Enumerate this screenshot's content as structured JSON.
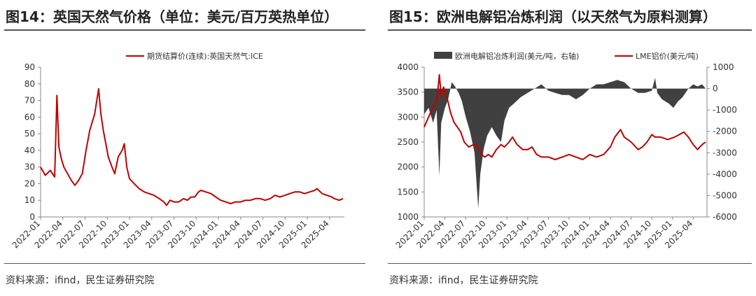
{
  "left": {
    "title": "图14：英国天然气价格（单位：美元/百万英热单位）",
    "source": "资料来源：ifind，民生证券研究院",
    "chart_data": {
      "type": "line",
      "title": "",
      "legend_position": "top-center",
      "ylim": [
        0,
        90
      ],
      "y_ticks": [
        "0",
        "10",
        "20",
        "30",
        "40",
        "50",
        "60",
        "70",
        "80",
        "90"
      ],
      "x_ticks": [
        "2022-01",
        "2022-04",
        "2022-07",
        "2022-10",
        "2023-01",
        "2023-04",
        "2023-07",
        "2023-10",
        "2024-01",
        "2024-04",
        "2024-07",
        "2024-10",
        "2025-01",
        "2025-04"
      ],
      "colors": {
        "line": "#c00000"
      },
      "series": [
        {
          "name": "期货结算价(连续):英国天然气:ICE",
          "points": [
            [
              "2022-01",
              30
            ],
            [
              "2022-01-20",
              25
            ],
            [
              "2022-02-10",
              28
            ],
            [
              "2022-02-28",
              24
            ],
            [
              "2022-03-07",
              73
            ],
            [
              "2022-03-15",
              42
            ],
            [
              "2022-03-25",
              35
            ],
            [
              "2022-04-05",
              30
            ],
            [
              "2022-04-20",
              26
            ],
            [
              "2022-05-05",
              22
            ],
            [
              "2022-05-20",
              19
            ],
            [
              "2022-06-05",
              22
            ],
            [
              "2022-06-20",
              26
            ],
            [
              "2022-07-05",
              40
            ],
            [
              "2022-07-20",
              52
            ],
            [
              "2022-08-10",
              62
            ],
            [
              "2022-08-26",
              77
            ],
            [
              "2022-09-05",
              62
            ],
            [
              "2022-09-15",
              52
            ],
            [
              "2022-09-25",
              44
            ],
            [
              "2022-10-05",
              36
            ],
            [
              "2022-10-20",
              30
            ],
            [
              "2022-11-01",
              26
            ],
            [
              "2022-11-15",
              36
            ],
            [
              "2022-12-01",
              40
            ],
            [
              "2022-12-10",
              44
            ],
            [
              "2022-12-20",
              30
            ],
            [
              "2023-01-01",
              23
            ],
            [
              "2023-01-20",
              20
            ],
            [
              "2023-02-10",
              17
            ],
            [
              "2023-03-01",
              15
            ],
            [
              "2023-03-20",
              14
            ],
            [
              "2023-04-10",
              13
            ],
            [
              "2023-05-01",
              11
            ],
            [
              "2023-05-20",
              9
            ],
            [
              "2023-06-01",
              7
            ],
            [
              "2023-06-15",
              10
            ],
            [
              "2023-07-01",
              9
            ],
            [
              "2023-07-20",
              9
            ],
            [
              "2023-08-10",
              11
            ],
            [
              "2023-08-25",
              10
            ],
            [
              "2023-09-10",
              12
            ],
            [
              "2023-09-25",
              12
            ],
            [
              "2023-10-10",
              15
            ],
            [
              "2023-10-20",
              16
            ],
            [
              "2023-11-10",
              15
            ],
            [
              "2023-12-01",
              14
            ],
            [
              "2023-12-20",
              12
            ],
            [
              "2024-01-10",
              10
            ],
            [
              "2024-02-01",
              9
            ],
            [
              "2024-02-20",
              8
            ],
            [
              "2024-03-10",
              9
            ],
            [
              "2024-04-01",
              9
            ],
            [
              "2024-04-20",
              10
            ],
            [
              "2024-05-10",
              10
            ],
            [
              "2024-06-01",
              11
            ],
            [
              "2024-06-20",
              11
            ],
            [
              "2024-07-10",
              10
            ],
            [
              "2024-08-01",
              11
            ],
            [
              "2024-08-20",
              13
            ],
            [
              "2024-09-10",
              12
            ],
            [
              "2024-10-01",
              13
            ],
            [
              "2024-10-20",
              14
            ],
            [
              "2024-11-10",
              15
            ],
            [
              "2024-12-01",
              15
            ],
            [
              "2024-12-20",
              14
            ],
            [
              "2025-01-10",
              15
            ],
            [
              "2025-02-01",
              16
            ],
            [
              "2025-02-10",
              17
            ],
            [
              "2025-03-01",
              14
            ],
            [
              "2025-03-20",
              13
            ],
            [
              "2025-04-10",
              12
            ],
            [
              "2025-04-20",
              11
            ],
            [
              "2025-05-10",
              10
            ],
            [
              "2025-05-25",
              11
            ]
          ]
        }
      ]
    }
  },
  "right": {
    "title": "图15：欧洲电解铝冶炼利润（以天然气为原料测算）",
    "source": "资料来源：ifind，民生证券研究院",
    "chart_data": {
      "type": "area+line",
      "title": "",
      "legend_position": "top",
      "y_left_lim": [
        1000,
        4000
      ],
      "y_left_ticks": [
        "1000",
        "1500",
        "2000",
        "2500",
        "3000",
        "3500",
        "4000"
      ],
      "y_right_lim": [
        -6000,
        1000
      ],
      "y_right_ticks": [
        "1000",
        "0",
        "-1000",
        "-2000",
        "-3000",
        "-4000",
        "-5000",
        "-6000"
      ],
      "x_ticks": [
        "2022-01",
        "2022-04",
        "2022-07",
        "2022-10",
        "2023-01",
        "2023-04",
        "2023-07",
        "2023-10",
        "2024-01",
        "2024-04",
        "2024-07",
        "2024-10",
        "2025-01",
        "2025-04"
      ],
      "colors": {
        "area": "#404040",
        "line": "#c00000"
      },
      "series": [
        {
          "name": "欧洲电解铝冶炼利润(美元/吨，右轴)",
          "axis": "right",
          "points": [
            [
              "2022-01",
              -1200
            ],
            [
              "2022-01-20",
              -900
            ],
            [
              "2022-02-10",
              -1600
            ],
            [
              "2022-02-25",
              -1000
            ],
            [
              "2022-03-07",
              -4100
            ],
            [
              "2022-03-15",
              -1600
            ],
            [
              "2022-04-01",
              -900
            ],
            [
              "2022-04-15",
              -500
            ],
            [
              "2022-05-01",
              300
            ],
            [
              "2022-05-15",
              100
            ],
            [
              "2022-06-01",
              -200
            ],
            [
              "2022-06-15",
              -600
            ],
            [
              "2022-07-01",
              -1300
            ],
            [
              "2022-07-20",
              -2000
            ],
            [
              "2022-08-10",
              -3000
            ],
            [
              "2022-08-26",
              -5600
            ],
            [
              "2022-09-05",
              -4000
            ],
            [
              "2022-09-20",
              -2800
            ],
            [
              "2022-10-05",
              -2200
            ],
            [
              "2022-10-25",
              -1800
            ],
            [
              "2022-11-15",
              -2200
            ],
            [
              "2022-12-05",
              -2500
            ],
            [
              "2022-12-20",
              -1500
            ],
            [
              "2023-01-10",
              -900
            ],
            [
              "2023-02-01",
              -700
            ],
            [
              "2023-03-01",
              -400
            ],
            [
              "2023-04-01",
              -200
            ],
            [
              "2023-05-01",
              0
            ],
            [
              "2023-06-01",
              200
            ],
            [
              "2023-07-01",
              -100
            ],
            [
              "2023-08-01",
              -200
            ],
            [
              "2023-09-01",
              -300
            ],
            [
              "2023-10-01",
              -300
            ],
            [
              "2023-11-01",
              -500
            ],
            [
              "2023-12-01",
              -300
            ],
            [
              "2024-01-01",
              0
            ],
            [
              "2024-02-01",
              200
            ],
            [
              "2024-03-01",
              200
            ],
            [
              "2024-04-01",
              300
            ],
            [
              "2024-05-01",
              400
            ],
            [
              "2024-06-01",
              300
            ],
            [
              "2024-07-01",
              0
            ],
            [
              "2024-08-01",
              -200
            ],
            [
              "2024-09-01",
              -200
            ],
            [
              "2024-10-01",
              -100
            ],
            [
              "2024-10-15",
              500
            ],
            [
              "2024-10-25",
              -200
            ],
            [
              "2024-11-15",
              -500
            ],
            [
              "2024-12-15",
              -700
            ],
            [
              "2025-01-05",
              -900
            ],
            [
              "2025-01-25",
              -600
            ],
            [
              "2025-02-15",
              -400
            ],
            [
              "2025-03-10",
              0
            ],
            [
              "2025-04-01",
              200
            ],
            [
              "2025-04-20",
              100
            ],
            [
              "2025-05-10",
              200
            ],
            [
              "2025-05-25",
              0
            ]
          ]
        },
        {
          "name": "LME铝价(美元/吨)",
          "axis": "left",
          "points": [
            [
              "2022-01",
              2800
            ],
            [
              "2022-01-20",
              3000
            ],
            [
              "2022-02-10",
              3200
            ],
            [
              "2022-02-25",
              3300
            ],
            [
              "2022-03-07",
              3850
            ],
            [
              "2022-03-15",
              3400
            ],
            [
              "2022-03-25",
              3600
            ],
            [
              "2022-04-10",
              3400
            ],
            [
              "2022-04-25",
              3100
            ],
            [
              "2022-05-10",
              2900
            ],
            [
              "2022-05-25",
              2800
            ],
            [
              "2022-06-10",
              2700
            ],
            [
              "2022-06-25",
              2500
            ],
            [
              "2022-07-15",
              2400
            ],
            [
              "2022-08-05",
              2450
            ],
            [
              "2022-08-25",
              2400
            ],
            [
              "2022-09-10",
              2250
            ],
            [
              "2022-09-25",
              2200
            ],
            [
              "2022-10-10",
              2250
            ],
            [
              "2022-10-25",
              2200
            ],
            [
              "2022-11-15",
              2350
            ],
            [
              "2022-12-05",
              2450
            ],
            [
              "2022-12-20",
              2400
            ],
            [
              "2023-01-10",
              2500
            ],
            [
              "2023-01-25",
              2600
            ],
            [
              "2023-02-15",
              2450
            ],
            [
              "2023-03-10",
              2350
            ],
            [
              "2023-04-01",
              2350
            ],
            [
              "2023-04-20",
              2400
            ],
            [
              "2023-05-10",
              2250
            ],
            [
              "2023-06-01",
              2200
            ],
            [
              "2023-07-01",
              2200
            ],
            [
              "2023-08-01",
              2150
            ],
            [
              "2023-09-01",
              2200
            ],
            [
              "2023-10-01",
              2250
            ],
            [
              "2023-11-01",
              2200
            ],
            [
              "2023-12-01",
              2150
            ],
            [
              "2024-01-01",
              2250
            ],
            [
              "2024-02-01",
              2200
            ],
            [
              "2024-03-01",
              2250
            ],
            [
              "2024-04-01",
              2400
            ],
            [
              "2024-04-20",
              2600
            ],
            [
              "2024-05-15",
              2750
            ],
            [
              "2024-06-01",
              2600
            ],
            [
              "2024-07-01",
              2500
            ],
            [
              "2024-08-01",
              2350
            ],
            [
              "2024-08-20",
              2400
            ],
            [
              "2024-09-10",
              2500
            ],
            [
              "2024-10-01",
              2650
            ],
            [
              "2024-10-15",
              2600
            ],
            [
              "2024-11-10",
              2600
            ],
            [
              "2024-12-10",
              2550
            ],
            [
              "2025-01-10",
              2600
            ],
            [
              "2025-02-01",
              2650
            ],
            [
              "2025-02-20",
              2700
            ],
            [
              "2025-03-10",
              2600
            ],
            [
              "2025-04-01",
              2450
            ],
            [
              "2025-04-20",
              2350
            ],
            [
              "2025-05-10",
              2450
            ],
            [
              "2025-05-25",
              2500
            ]
          ]
        }
      ]
    }
  }
}
